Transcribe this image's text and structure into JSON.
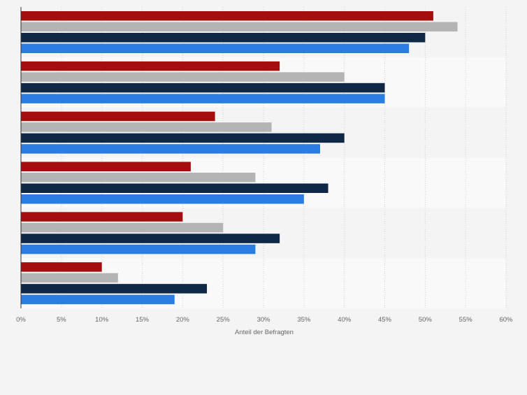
{
  "chart_data": {
    "type": "bar",
    "orientation": "horizontal",
    "categories": [
      "",
      "",
      "",
      "",
      "",
      ""
    ],
    "series": [
      {
        "color": "#a50e0e",
        "values": [
          51,
          32,
          24,
          21,
          20,
          10
        ]
      },
      {
        "color": "#b4b4b4",
        "values": [
          54,
          40,
          31,
          29,
          25,
          12
        ]
      },
      {
        "color": "#0e2846",
        "values": [
          50,
          45,
          40,
          38,
          32,
          23
        ]
      },
      {
        "color": "#2a7de1",
        "values": [
          48,
          45,
          37,
          35,
          29,
          19
        ]
      }
    ],
    "x_ticks": [
      "0%",
      "5%",
      "10%",
      "15%",
      "20%",
      "25%",
      "30%",
      "35%",
      "40%",
      "45%",
      "50%",
      "55%",
      "60%"
    ],
    "xlim": [
      0,
      60
    ],
    "xlabel": "Anteil der Befragten",
    "ylabel": "",
    "grid": true,
    "legend": "none",
    "band_colors": [
      "#f4f4f4",
      "#f9f9f9"
    ]
  }
}
